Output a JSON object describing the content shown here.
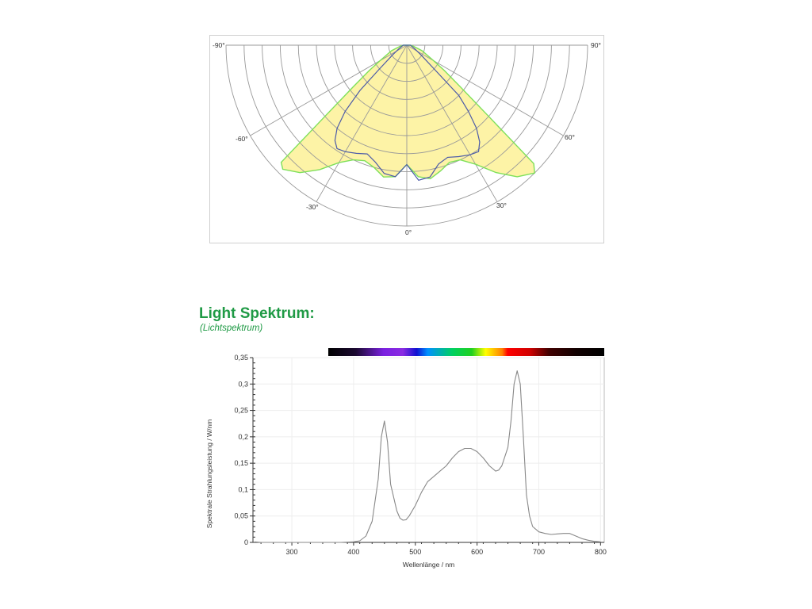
{
  "section": {
    "title": "Light Spektrum:",
    "subtitle": "(Lichtspektrum)"
  },
  "chart_data": [
    {
      "type": "polar",
      "angle_labels": [
        "-90°",
        "-60°",
        "-30°",
        "0°",
        "30°",
        "60°",
        "90°"
      ],
      "rings": 10,
      "colors": {
        "fill": "#fdf3a6",
        "outer": "#7ee05a",
        "inner": "#4b5aa8",
        "grid": "#999999"
      },
      "series": [
        {
          "angles": [
            -90,
            -80,
            -70,
            -60,
            -56,
            -52,
            -49,
            -47,
            -45,
            -40,
            -35,
            -30,
            -25,
            -20,
            -15,
            -10,
            -5,
            0,
            5,
            10,
            15,
            20,
            25,
            30,
            35,
            40,
            45,
            47,
            49,
            52,
            56,
            60,
            70,
            80,
            90
          ],
          "r": [
            0.02,
            0.04,
            0.09,
            0.17,
            0.25,
            0.38,
            0.6,
            0.95,
            0.97,
            0.92,
            0.84,
            0.75,
            0.7,
            0.68,
            0.7,
            0.74,
            0.73,
            0.66,
            0.73,
            0.75,
            0.72,
            0.69,
            0.7,
            0.76,
            0.86,
            0.95,
            1.0,
            0.96,
            0.6,
            0.38,
            0.25,
            0.17,
            0.09,
            0.04,
            0.02
          ]
        },
        {
          "angles": [
            -90,
            -65,
            -55,
            -49,
            -46,
            -43,
            -40,
            -37,
            -34,
            -30,
            -25,
            -20,
            -15,
            -10,
            -5,
            0,
            5,
            10,
            15,
            20,
            25,
            30,
            34,
            37,
            40,
            43,
            46,
            49,
            55,
            65,
            90
          ],
          "r": [
            0.02,
            0.05,
            0.1,
            0.2,
            0.36,
            0.5,
            0.6,
            0.66,
            0.69,
            0.68,
            0.66,
            0.64,
            0.67,
            0.72,
            0.73,
            0.66,
            0.75,
            0.74,
            0.68,
            0.66,
            0.68,
            0.7,
            0.71,
            0.67,
            0.6,
            0.5,
            0.4,
            0.2,
            0.1,
            0.05,
            0.02
          ]
        }
      ]
    },
    {
      "type": "line",
      "xlabel": "Wellenlänge / nm",
      "ylabel": "Spektrale Strahlungsleistung / W/nm",
      "xlim": [
        237,
        806
      ],
      "ylim": [
        0,
        0.35
      ],
      "xticks": [
        300,
        400,
        500,
        600,
        700,
        800
      ],
      "xtick_labels": [
        "300",
        "400",
        "500",
        "600",
        "700",
        "800"
      ],
      "yticks": [
        0,
        0.05,
        0.1,
        0.15,
        0.2,
        0.25,
        0.3,
        0.35
      ],
      "ytick_labels": [
        "0",
        "0,05",
        "0,1",
        "0,15",
        "0,2",
        "0,25",
        "0,3",
        "0,35"
      ],
      "grid": true,
      "line_color": "#888888",
      "x": [
        240,
        250,
        380,
        400,
        410,
        420,
        430,
        440,
        445,
        450,
        455,
        460,
        465,
        470,
        475,
        480,
        485,
        490,
        500,
        510,
        520,
        530,
        540,
        550,
        560,
        570,
        580,
        590,
        600,
        610,
        620,
        630,
        635,
        640,
        650,
        655,
        660,
        665,
        670,
        675,
        680,
        685,
        690,
        700,
        710,
        720,
        730,
        740,
        750,
        760,
        770,
        780,
        790,
        800
      ],
      "y": [
        0.001,
        0,
        0,
        0.001,
        0.003,
        0.012,
        0.04,
        0.12,
        0.2,
        0.23,
        0.19,
        0.11,
        0.085,
        0.06,
        0.046,
        0.042,
        0.043,
        0.05,
        0.07,
        0.095,
        0.115,
        0.125,
        0.135,
        0.145,
        0.16,
        0.172,
        0.178,
        0.178,
        0.172,
        0.16,
        0.145,
        0.135,
        0.137,
        0.145,
        0.18,
        0.23,
        0.3,
        0.325,
        0.3,
        0.2,
        0.09,
        0.05,
        0.03,
        0.02,
        0.017,
        0.015,
        0.016,
        0.017,
        0.017,
        0.012,
        0.007,
        0.004,
        0.002,
        0.001
      ],
      "spectrum_bar_range": [
        359,
        806
      ]
    }
  ]
}
